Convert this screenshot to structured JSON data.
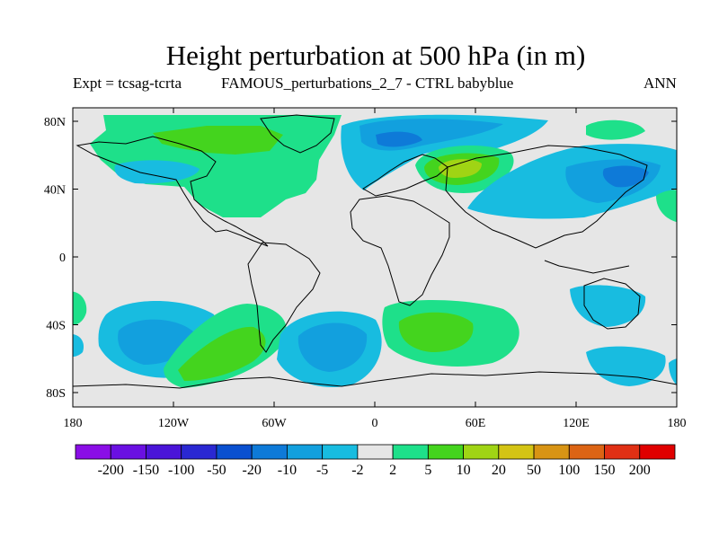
{
  "title": "Height perturbation at 500 hPa (in m)",
  "subtitle_left": "Expt = tcsag-tcrta",
  "subtitle_center": "FAMOUS_perturbations_2_7 - CTRL babyblue",
  "subtitle_right": "ANN",
  "axes": {
    "x_ticks": [
      "180",
      "120W",
      "60W",
      "0",
      "60E",
      "120E",
      "180"
    ],
    "y_ticks": [
      "80N",
      "40N",
      "0",
      "40S",
      "80S"
    ]
  },
  "colorbar": {
    "labels": [
      "-200",
      "-150",
      "-100",
      "-50",
      "-20",
      "-10",
      "-5",
      "-2",
      "2",
      "5",
      "10",
      "20",
      "50",
      "100",
      "150",
      "200"
    ],
    "colors": [
      "#8a0ee6",
      "#6a10e2",
      "#4a14d8",
      "#2a28d2",
      "#0a50d0",
      "#0e7ad8",
      "#12a0de",
      "#18bce0",
      "#e6e6e6",
      "#1ee08a",
      "#44d41e",
      "#a0d414",
      "#d4c414",
      "#d89414",
      "#dc6414",
      "#e03014",
      "#e00000"
    ]
  },
  "background_color": "#e6e6e6"
}
